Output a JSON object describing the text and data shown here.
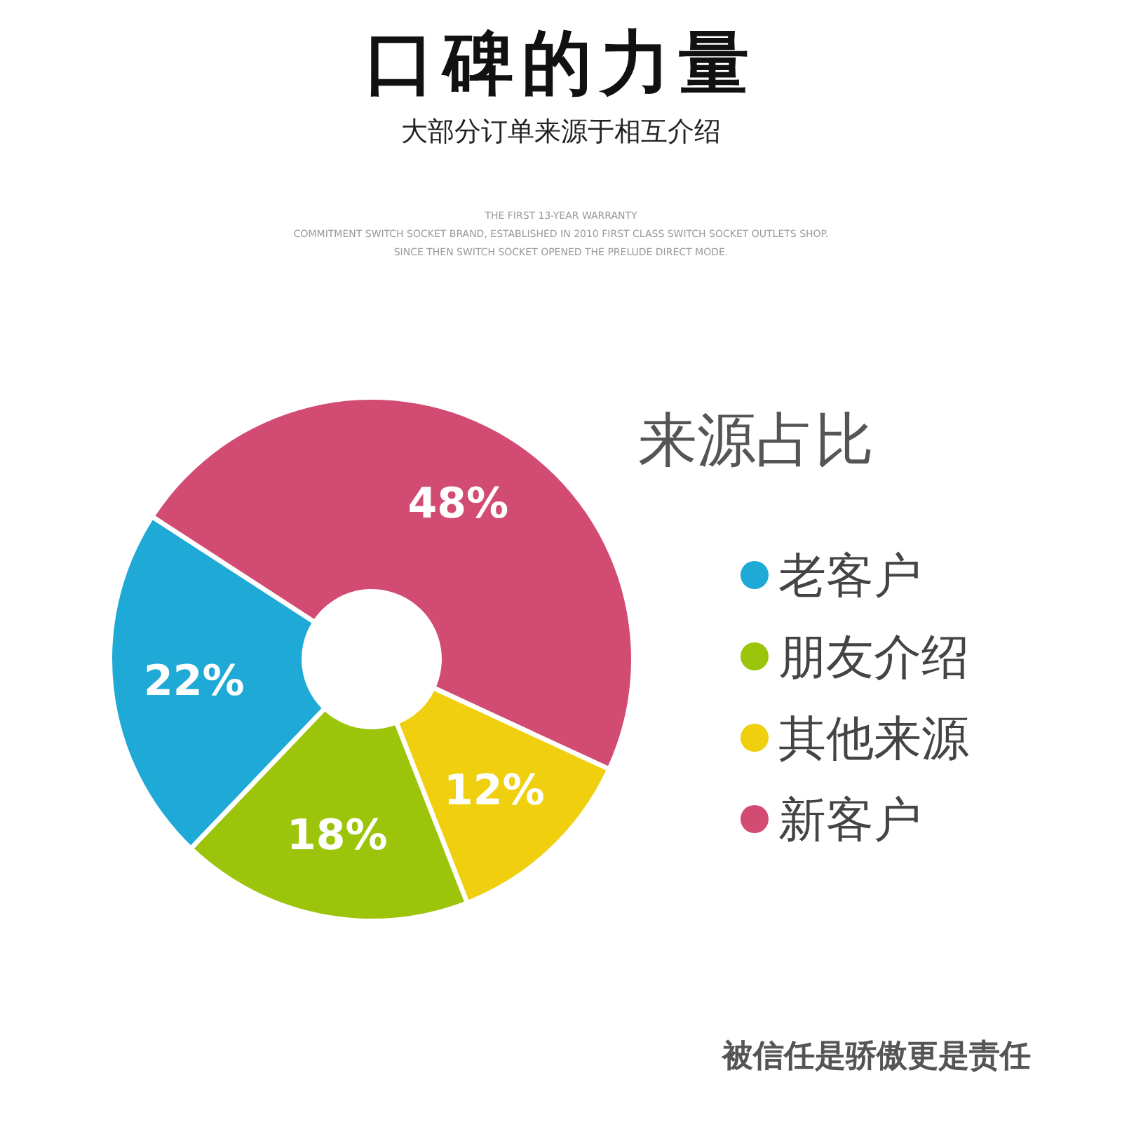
{
  "chart_data": {
    "type": "donut",
    "title": "口碑的力量",
    "subtitle": "大部分订单来源于相互介绍",
    "legend_title": "来源占比",
    "categories": [
      "老客户",
      "朋友介绍",
      "其他来源",
      "新客户"
    ],
    "values": [
      22,
      18,
      12,
      48
    ],
    "colors": [
      "#1fa9d6",
      "#9cc40a",
      "#efcf0e",
      "#d24b73"
    ],
    "value_labels": [
      "22%",
      "18%",
      "12%",
      "48%"
    ],
    "legend": "right",
    "annotations": [
      "THE FIRST 13-YEAR WARRANTY",
      "COMMITMENT SWITCH SOCKET BRAND, ESTABLISHED IN 2010 FIRST CLASS SWITCH SOCKET OUTLETS SHOP.",
      "SINCE THEN SWITCH SOCKET OPENED THE PRELUDE DIRECT MODE.",
      "被信任是骄傲更是责任"
    ]
  }
}
